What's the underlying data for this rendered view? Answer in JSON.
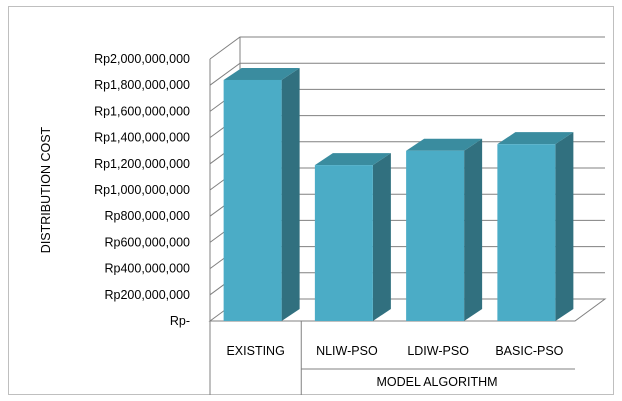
{
  "chart_data": {
    "type": "bar",
    "style": "3d-column",
    "categories": [
      "EXISTING",
      "NLIW-PSO",
      "LDIW-PSO",
      "BASIC-PSO"
    ],
    "values": [
      1840000000,
      1190000000,
      1300000000,
      1350000000
    ],
    "title": "",
    "xlabel": "MODEL ALGORITHM",
    "ylabel": "DISTRIBUTION COST",
    "ylim": [
      0,
      2000000000
    ],
    "yticks": [
      0,
      200000000,
      400000000,
      600000000,
      800000000,
      1000000000,
      1200000000,
      1400000000,
      1600000000,
      1800000000,
      2000000000
    ],
    "ytick_labels": [
      "Rp-",
      "Rp200,000,000",
      "Rp400,000,000",
      "Rp600,000,000",
      "Rp800,000,000",
      "Rp1,000,000,000",
      "Rp1,200,000,000",
      "Rp1,400,000,000",
      "Rp1,600,000,000",
      "Rp1,800,000,000",
      "Rp2,000,000,000"
    ],
    "grid": true,
    "legend": "none",
    "colors": {
      "bar_front": "#4BACC6",
      "bar_side": "#31707F",
      "bar_top": "#3A8C9F",
      "grid": "#808080"
    }
  }
}
